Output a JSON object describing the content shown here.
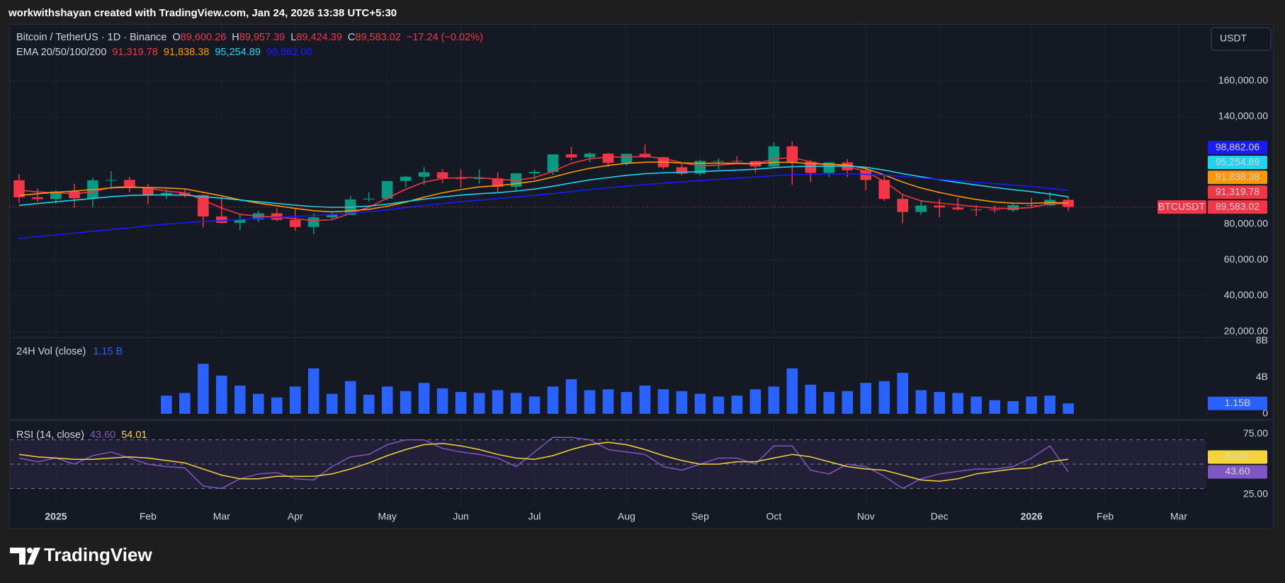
{
  "header": {
    "attribution": "workwithshayan created with TradingView.com, Jan 24, 2026 13:38 UTC+5:30"
  },
  "footer": {
    "brand": "TradingView"
  },
  "chart_data": [
    {
      "type": "candlestick",
      "title": "Bitcoin / TetherUS · 1D · Binance",
      "currency": "USDT",
      "ohlc": [
        {
          "key": "O",
          "value": 89600.26,
          "label": "89,600.26"
        },
        {
          "key": "H",
          "value": 89957.39,
          "label": "89,957.39"
        },
        {
          "key": "L",
          "value": 89424.39,
          "label": "89,424.39"
        },
        {
          "key": "C",
          "value": 89583.02,
          "label": "89,583.02"
        }
      ],
      "change": "−17.24 (−0.02%)",
      "categories": [
        null,
        null,
        "2025",
        null,
        null,
        null,
        null,
        "Feb",
        null,
        null,
        null,
        "Mar",
        null,
        null,
        null,
        "Apr",
        null,
        null,
        null,
        null,
        "May",
        null,
        null,
        null,
        "Jun",
        null,
        null,
        null,
        "Jul",
        null,
        null,
        null,
        null,
        "Aug",
        null,
        null,
        null,
        "Sep",
        null,
        null,
        null,
        "Oct",
        null,
        null,
        null,
        null,
        "Nov",
        null,
        null,
        null,
        "Dec",
        null,
        null,
        null,
        null,
        "2026",
        null,
        null,
        null,
        "Feb",
        null,
        null,
        null,
        "Mar",
        null
      ],
      "candles": {
        "name": "BTCUSDT",
        "up_color": "#089981",
        "down_color": "#f23645",
        "last_label": "89,583.02",
        "open": [
          104500,
          95000,
          94000,
          98300,
          94500,
          104500,
          104700,
          100600,
          96400,
          97500,
          96200,
          84300,
          80700,
          82600,
          86100,
          82400,
          78400,
          83800,
          85200,
          93800,
          94300,
          104100,
          106500,
          109000,
          105700,
          105600,
          105600,
          100900,
          108400,
          109200,
          119000,
          117300,
          119400,
          114200,
          119300,
          117400,
          111800,
          108200,
          115300,
          115300,
          115200,
          112200,
          123500,
          114900,
          108600,
          114500,
          110100,
          104700,
          94100,
          86800,
          90400,
          89300,
          88200,
          88100,
          87800,
          90600,
          90500,
          93600,
          null,
          null,
          null,
          null,
          null,
          null,
          null
        ],
        "high": [
          108000,
          99900,
          98900,
          102700,
          105900,
          109600,
          106400,
          102500,
          99500,
          99500,
          96500,
          95000,
          85300,
          87500,
          88800,
          88500,
          86100,
          86400,
          95800,
          97900,
          104100,
          107100,
          111900,
          110700,
          110600,
          110600,
          108900,
          108500,
          110500,
          119000,
          123200,
          120200,
          119800,
          119400,
          124500,
          117600,
          113600,
          116000,
          116800,
          117900,
          115400,
          125700,
          126200,
          116000,
          113900,
          116400,
          110800,
          107500,
          96600,
          93100,
          94200,
          94600,
          90600,
          90400,
          91500,
          94800,
          97900,
          95500,
          null,
          null,
          null,
          null,
          null,
          null,
          null
        ],
        "low": [
          92000,
          92500,
          91500,
          89300,
          89200,
          99500,
          97800,
          91200,
          94100,
          94900,
          78200,
          80500,
          76600,
          81100,
          81600,
          76200,
          74500,
          83000,
          85100,
          92800,
          93400,
          100700,
          102000,
          103100,
          100400,
          102700,
          98200,
          98200,
          105100,
          107500,
          115700,
          114700,
          112000,
          112700,
          116800,
          110700,
          107300,
          107300,
          110600,
          114300,
          108600,
          111600,
          102000,
          103500,
          106300,
          106300,
          98900,
          93000,
          80600,
          85300,
          83800,
          87600,
          84500,
          86400,
          86800,
          89300,
          90000,
          87300,
          null,
          null,
          null,
          null,
          null,
          null,
          null
        ],
        "close": [
          95000,
          94000,
          98300,
          94500,
          104500,
          104700,
          100600,
          96400,
          97500,
          96200,
          84300,
          80700,
          82600,
          86100,
          82400,
          78400,
          83800,
          85200,
          93800,
          94300,
          104100,
          106500,
          109000,
          105700,
          105600,
          105600,
          100900,
          108400,
          109200,
          119000,
          117300,
          119400,
          114200,
          119300,
          117400,
          111800,
          108200,
          115300,
          115300,
          115200,
          112200,
          123500,
          114900,
          108600,
          114500,
          110100,
          104700,
          94100,
          86800,
          90400,
          89300,
          88200,
          88100,
          87800,
          90600,
          90500,
          93600,
          89583.02,
          null,
          null,
          null,
          null,
          null,
          null,
          null
        ]
      },
      "indicator": "EMA 20/50/100/200",
      "series": [
        {
          "color": "#f23645",
          "last_label": "91,319.78",
          "values": [
            99000,
            98000,
            97500,
            97000,
            98000,
            100500,
            101200,
            100000,
            98500,
            97500,
            93500,
            89000,
            85500,
            84500,
            84000,
            83000,
            82000,
            82500,
            86000,
            89500,
            94500,
            99500,
            103500,
            105500,
            106000,
            106000,
            105000,
            104500,
            106000,
            109500,
            114000,
            116500,
            117500,
            117500,
            117800,
            116800,
            114300,
            112500,
            113000,
            113800,
            113600,
            116500,
            117300,
            114800,
            112600,
            112200,
            109500,
            103800,
            96500,
            93000,
            91800,
            90800,
            89800,
            88900,
            88700,
            89300,
            91500,
            91319.78,
            null,
            null,
            null,
            null,
            null,
            null,
            null
          ]
        },
        {
          "color": "#ff9800",
          "last_label": "91,838.38",
          "values": [
            96000,
            97000,
            97800,
            98500,
            99300,
            100300,
            100600,
            100500,
            100200,
            99700,
            97800,
            95800,
            93600,
            91700,
            90300,
            88800,
            87500,
            86900,
            87400,
            88300,
            90000,
            92300,
            95100,
            97500,
            99300,
            100800,
            101500,
            102600,
            104000,
            106300,
            109000,
            111200,
            112800,
            114000,
            114600,
            114700,
            114200,
            114000,
            114100,
            114000,
            113800,
            114500,
            114600,
            113800,
            113500,
            113000,
            111000,
            107500,
            103500,
            100200,
            97700,
            95600,
            93800,
            92400,
            91700,
            91600,
            92100,
            91838.38,
            null,
            null,
            null,
            null,
            null,
            null,
            null
          ]
        },
        {
          "color": "#22d3ee",
          "last_label": "95,254.89",
          "values": [
            90500,
            91500,
            92500,
            93400,
            94400,
            95400,
            96000,
            96300,
            96300,
            96200,
            95400,
            94500,
            93500,
            92500,
            91600,
            90600,
            89800,
            89400,
            89500,
            90100,
            91200,
            92600,
            94000,
            95200,
            96200,
            97000,
            97600,
            98500,
            99600,
            101200,
            103000,
            104700,
            106000,
            107300,
            108200,
            108700,
            109000,
            109400,
            109800,
            110200,
            110700,
            111500,
            112100,
            112300,
            112400,
            112500,
            111800,
            110200,
            108200,
            106500,
            104800,
            103300,
            101900,
            100500,
            99200,
            98200,
            96800,
            95254.89,
            null,
            null,
            null,
            null,
            null,
            null,
            null
          ]
        },
        {
          "color": "#1a1aff",
          "last_label": "98,862.06",
          "values": [
            72000,
            73000,
            74000,
            75000,
            76000,
            77000,
            78000,
            79000,
            80000,
            80800,
            81500,
            82000,
            82600,
            83200,
            83800,
            84300,
            84800,
            85400,
            86200,
            87000,
            88000,
            89200,
            90400,
            91500,
            92500,
            93400,
            94300,
            95200,
            96100,
            97100,
            98200,
            99300,
            100300,
            101200,
            102100,
            102900,
            103600,
            104300,
            105000,
            105700,
            106300,
            107100,
            107600,
            107800,
            108000,
            108100,
            107800,
            107400,
            106600,
            105800,
            105000,
            104200,
            103400,
            102600,
            101800,
            101000,
            100000,
            98862.06,
            null,
            null,
            null,
            null,
            null,
            null,
            null
          ]
        }
      ],
      "ylim": [
        16680,
        191400
      ],
      "yticks": [
        {
          "value": 20000,
          "label": "20,000.00"
        },
        {
          "value": 40000,
          "label": "40,000.00"
        },
        {
          "value": 60000,
          "label": "60,000.00"
        },
        {
          "value": 80000,
          "label": "80,000.00"
        },
        {
          "value": 140000,
          "label": "140,000.00"
        },
        {
          "value": 160000,
          "label": "160,000.00"
        }
      ],
      "grid": true
    },
    {
      "type": "bar",
      "title": "24H Vol (close)",
      "legend_value": "1.15 B",
      "color": "#2962ff",
      "last_label": "1.15B",
      "values": [
        null,
        null,
        null,
        null,
        null,
        null,
        null,
        null,
        2.0,
        2.3,
        5.5,
        4.2,
        3.1,
        2.2,
        1.8,
        3.0,
        5.0,
        2.2,
        3.6,
        2.1,
        3.0,
        2.5,
        3.4,
        2.8,
        2.4,
        2.3,
        2.6,
        2.3,
        1.9,
        3.0,
        3.8,
        2.6,
        2.7,
        2.4,
        3.1,
        2.7,
        2.5,
        2.2,
        1.9,
        2.0,
        2.7,
        3.0,
        5.0,
        3.2,
        2.4,
        2.5,
        3.4,
        3.6,
        4.5,
        2.6,
        2.4,
        2.3,
        1.9,
        1.5,
        1.4,
        1.9,
        2.0,
        1.15,
        null,
        null,
        null,
        null,
        null,
        null,
        null
      ],
      "ylim": [
        -0.63,
        8.39
      ],
      "yticks": [
        0,
        {
          "value": 4,
          "label": "4B"
        },
        {
          "value": 8,
          "label": "8B"
        }
      ]
    },
    {
      "type": "line",
      "title": "RSI (14, close)",
      "series": [
        {
          "color": "#7e57c2",
          "last_label": "43.60",
          "values": [
            55,
            52,
            55,
            50,
            57,
            60,
            55,
            50,
            48,
            47,
            32,
            30,
            38,
            42,
            43,
            38,
            37,
            48,
            56,
            58,
            66,
            70,
            70,
            63,
            60,
            58,
            55,
            48,
            60,
            72,
            72,
            70,
            62,
            60,
            58,
            48,
            45,
            50,
            55,
            55,
            50,
            65,
            65,
            45,
            42,
            50,
            48,
            40,
            30,
            38,
            42,
            44,
            46,
            46,
            48,
            55,
            65,
            43.6,
            null,
            null,
            null,
            null,
            null,
            null,
            null
          ]
        },
        {
          "color": "#f5d33b",
          "last_label": "54.01",
          "values": [
            58,
            56,
            55,
            54,
            54,
            55,
            56,
            55,
            53,
            51,
            46,
            41,
            38,
            38,
            40,
            40,
            40,
            42,
            46,
            51,
            57,
            62,
            66,
            67,
            65,
            62,
            58,
            55,
            54,
            57,
            62,
            66,
            68,
            66,
            62,
            57,
            53,
            50,
            50,
            52,
            52,
            55,
            58,
            56,
            52,
            48,
            46,
            45,
            41,
            37,
            36,
            38,
            42,
            44,
            46,
            47,
            52,
            54.01,
            null,
            null,
            null,
            null,
            null,
            null,
            null
          ]
        }
      ],
      "bands": [
        30,
        50,
        70
      ],
      "ylim": [
        15.7,
        85.5
      ],
      "yticks": [
        {
          "value": 25,
          "label": "25.00"
        },
        {
          "value": 75,
          "label": "75.00"
        }
      ]
    }
  ]
}
